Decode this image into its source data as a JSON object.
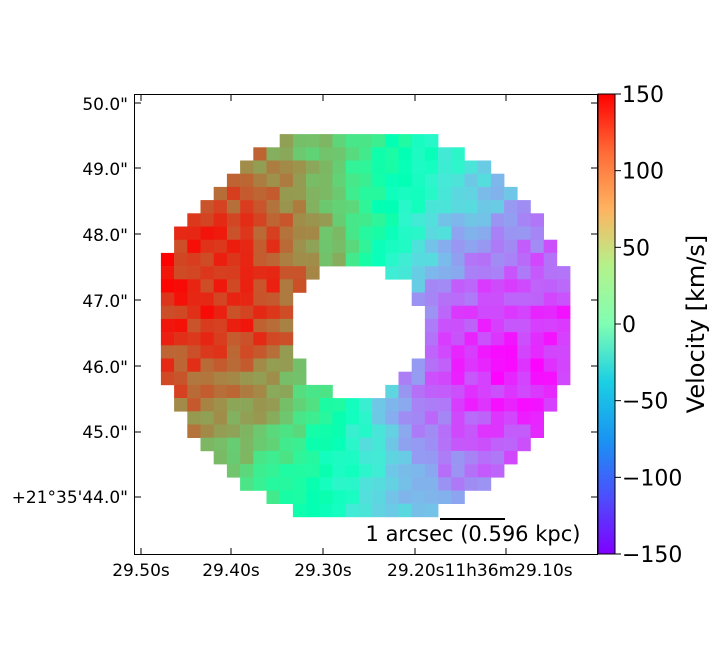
{
  "chart_data": {
    "type": "heatmap",
    "colormap": "rainbow",
    "x_tick_labels": [
      "29.50s",
      "29.40s",
      "29.30s",
      "29.20s11h36m29.10s"
    ],
    "y_tick_labels": [
      "50.0\"",
      "49.0\"",
      "48.0\"",
      "47.0\"",
      "46.0\"",
      "45.0\"",
      "+21°35'44.0\""
    ],
    "colorbar": {
      "label": "Velocity [km/s]",
      "vmin": -150,
      "vmax": 150,
      "ticks": [
        150,
        100,
        50,
        0,
        -50,
        -100,
        -150
      ],
      "tick_labels": [
        "150",
        "100",
        "50",
        "0",
        "−50",
        "−100",
        "−150"
      ]
    },
    "scale_bar": {
      "label": "1 arcsec (0.596 kpc)"
    },
    "map": {
      "ring_center_velocity_trend": "positive (east, left) to negative (west, right)",
      "max_velocity": 150,
      "min_velocity": -150
    }
  }
}
